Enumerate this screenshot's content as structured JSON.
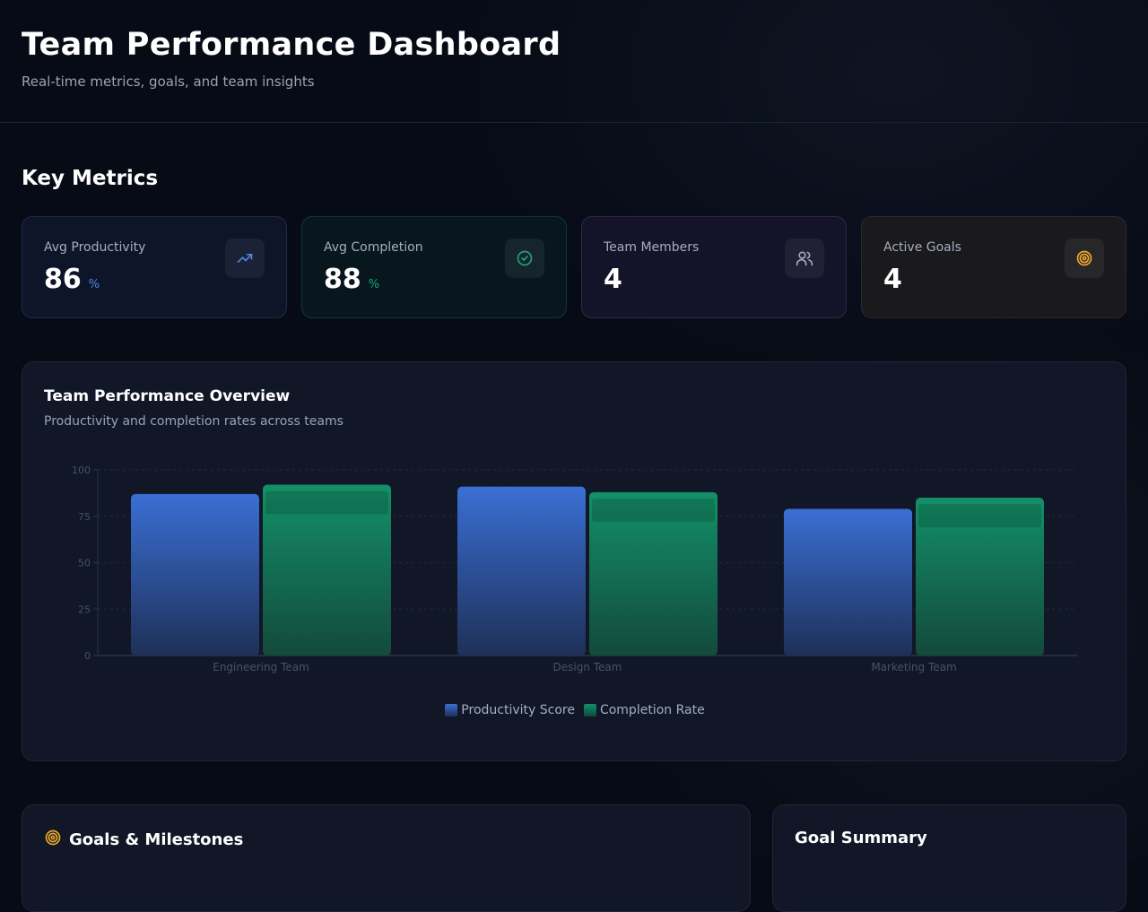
{
  "header": {
    "title": "Team Performance Dashboard",
    "subtitle": "Real-time metrics, goals, and team insights"
  },
  "metrics_section": {
    "title": "Key Metrics",
    "cards": [
      {
        "label": "Avg Productivity",
        "value": "86",
        "unit": "%",
        "icon": "trending-up-icon",
        "accent": "#4f86e6"
      },
      {
        "label": "Avg Completion",
        "value": "88",
        "unit": "%",
        "icon": "check-circle-icon",
        "accent": "#1fa37a"
      },
      {
        "label": "Team Members",
        "value": "4",
        "unit": "",
        "icon": "users-icon",
        "accent": "#a3a8c4"
      },
      {
        "label": "Active Goals",
        "value": "4",
        "unit": "",
        "icon": "target-icon",
        "accent": "#f0a92a"
      }
    ]
  },
  "chart_panel": {
    "title": "Team Performance Overview",
    "subtitle": "Productivity and completion rates across teams"
  },
  "chart_data": {
    "type": "bar",
    "categories": [
      "Engineering Team",
      "Design Team",
      "Marketing Team"
    ],
    "series": [
      {
        "name": "Productivity Score",
        "values": [
          87,
          91,
          79
        ],
        "color": "#3a6fd4"
      },
      {
        "name": "Completion Rate",
        "values": [
          92,
          88,
          85
        ],
        "color": "#16946a"
      }
    ],
    "yticks": [
      0,
      25,
      50,
      75,
      100
    ],
    "ylim": [
      0,
      100
    ],
    "grid": true,
    "legend": "bottom-center"
  },
  "bottom": {
    "goals_title": "Goals & Milestones",
    "summary_title": "Goal Summary"
  }
}
